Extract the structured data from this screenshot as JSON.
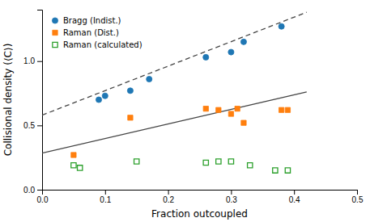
{
  "chart_data": {
    "type": "scatter",
    "xlabel": "Fraction outcoupled",
    "ylabel": "Collisional density (⟨C⟩)",
    "xlim": [
      0,
      0.5
    ],
    "ylim": [
      0,
      1.4
    ],
    "xticks": [
      {
        "value": 0,
        "label": "0.0"
      },
      0.1,
      0.2,
      0.3,
      0.4,
      0.5
    ],
    "yticks": [
      {
        "value": 0,
        "label": "0.0"
      },
      0.5,
      {
        "value": 1,
        "label": "1.0"
      }
    ],
    "grid": false,
    "legend": "upper left",
    "series": [
      {
        "type": "line",
        "line_style": "dashed",
        "x": [
          0,
          0.42
        ],
        "values": [
          0.58,
          1.38
        ]
      },
      {
        "type": "line",
        "line_style": "solid",
        "x": [
          0,
          0.42
        ],
        "values": [
          0.285,
          0.76
        ]
      },
      {
        "name": "Bragg (Indist.)",
        "type": "scatter",
        "marker": "circle",
        "x": [
          0.09,
          0.1,
          0.14,
          0.17,
          0.26,
          0.3,
          0.32,
          0.38
        ],
        "values": [
          0.7,
          0.73,
          0.77,
          0.86,
          1.03,
          1.07,
          1.15,
          1.27
        ]
      },
      {
        "name": "Raman (Dist.)",
        "type": "scatter",
        "marker": "square",
        "x": [
          0.05,
          0.14,
          0.26,
          0.28,
          0.3,
          0.31,
          0.32,
          0.38,
          0.39
        ],
        "values": [
          0.27,
          0.56,
          0.63,
          0.62,
          0.59,
          0.63,
          0.52,
          0.62,
          0.62
        ]
      },
      {
        "name": "Raman (calculated)",
        "type": "scatter",
        "marker": "square-open",
        "x": [
          0.05,
          0.06,
          0.15,
          0.26,
          0.28,
          0.3,
          0.33,
          0.37,
          0.39
        ],
        "values": [
          0.19,
          0.17,
          0.22,
          0.21,
          0.22,
          0.22,
          0.19,
          0.15,
          0.15
        ]
      }
    ]
  }
}
